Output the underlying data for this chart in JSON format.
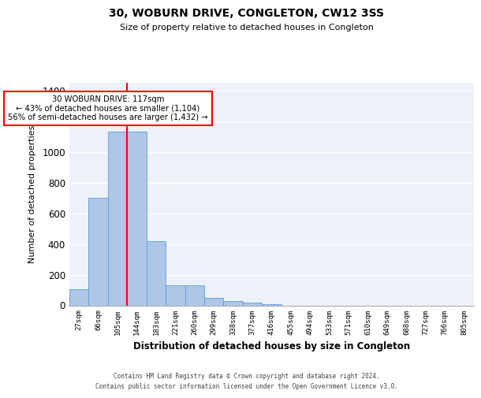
{
  "title": "30, WOBURN DRIVE, CONGLETON, CW12 3SS",
  "subtitle": "Size of property relative to detached houses in Congleton",
  "xlabel": "Distribution of detached houses by size in Congleton",
  "ylabel": "Number of detached properties",
  "categories": [
    "27sqm",
    "66sqm",
    "105sqm",
    "144sqm",
    "183sqm",
    "221sqm",
    "260sqm",
    "299sqm",
    "338sqm",
    "377sqm",
    "416sqm",
    "455sqm",
    "494sqm",
    "533sqm",
    "571sqm",
    "610sqm",
    "649sqm",
    "688sqm",
    "727sqm",
    "766sqm",
    "805sqm"
  ],
  "values": [
    105,
    700,
    1130,
    1130,
    420,
    130,
    130,
    50,
    30,
    20,
    10,
    0,
    0,
    0,
    0,
    0,
    0,
    0,
    0,
    0,
    0
  ],
  "bar_color": "#aec6e8",
  "bar_edge_color": "#5a9fd4",
  "red_line_x": 2.5,
  "annotation_text_line1": "30 WOBURN DRIVE: 117sqm",
  "annotation_text_line2": "← 43% of detached houses are smaller (1,104)",
  "annotation_text_line3": "56% of semi-detached houses are larger (1,432) →",
  "ylim": [
    0,
    1450
  ],
  "yticks": [
    0,
    200,
    400,
    600,
    800,
    1000,
    1200,
    1400
  ],
  "background_color": "#edf2fa",
  "grid_color": "#ffffff",
  "footer_line1": "Contains HM Land Registry data © Crown copyright and database right 2024.",
  "footer_line2": "Contains public sector information licensed under the Open Government Licence v3.0."
}
